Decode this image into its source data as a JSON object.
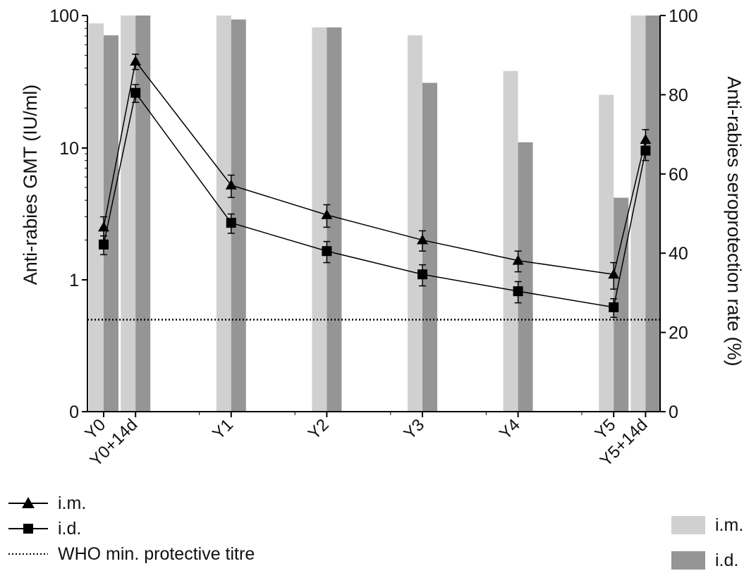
{
  "chart_data": {
    "type": "bar+line",
    "categories": [
      "Y0",
      "Y0+14d",
      "Y1",
      "Y2",
      "Y3",
      "Y4",
      "Y5",
      "Y5+14d"
    ],
    "category_positions": [
      0,
      1,
      4,
      7,
      10,
      13,
      16,
      17
    ],
    "left_axis": {
      "label": "Anti-rabies GMT (IU/ml)",
      "scale": "log",
      "ticks": [
        "0",
        "1",
        "10",
        "100"
      ]
    },
    "right_axis": {
      "label": "Anti-rabies seroprotection rate (%)",
      "range": [
        0,
        100
      ],
      "ticks": [
        "0",
        "20",
        "40",
        "60",
        "80",
        "100"
      ]
    },
    "bar_series": [
      {
        "name": "i.m.",
        "color": "#d0d0d0",
        "values": [
          98,
          100,
          100,
          97,
          95,
          86,
          80,
          100
        ]
      },
      {
        "name": "i.d.",
        "color": "#959595",
        "values": [
          95,
          100,
          99,
          97,
          83,
          68,
          54,
          100
        ]
      }
    ],
    "line_series": [
      {
        "name": "i.m.",
        "marker": "triangle",
        "values": [
          2.5,
          45,
          5.2,
          3.1,
          2.0,
          1.4,
          1.1,
          11.5
        ],
        "err": [
          0.5,
          6,
          1.0,
          0.6,
          0.35,
          0.25,
          0.25,
          2.2
        ]
      },
      {
        "name": "i.d.",
        "marker": "square",
        "values": [
          1.85,
          26,
          2.7,
          1.65,
          1.1,
          0.82,
          0.62,
          9.5
        ],
        "err": [
          0.3,
          4,
          0.45,
          0.3,
          0.2,
          0.15,
          0.1,
          1.5
        ]
      }
    ],
    "reference_line": {
      "name": "WHO min. protective titre",
      "value": 0.5,
      "style": "dotted"
    },
    "legend": {
      "lines": [
        "i.m.",
        "i.d.",
        "WHO min. protective titre"
      ],
      "bars": [
        "i.m.",
        "i.d."
      ]
    }
  }
}
